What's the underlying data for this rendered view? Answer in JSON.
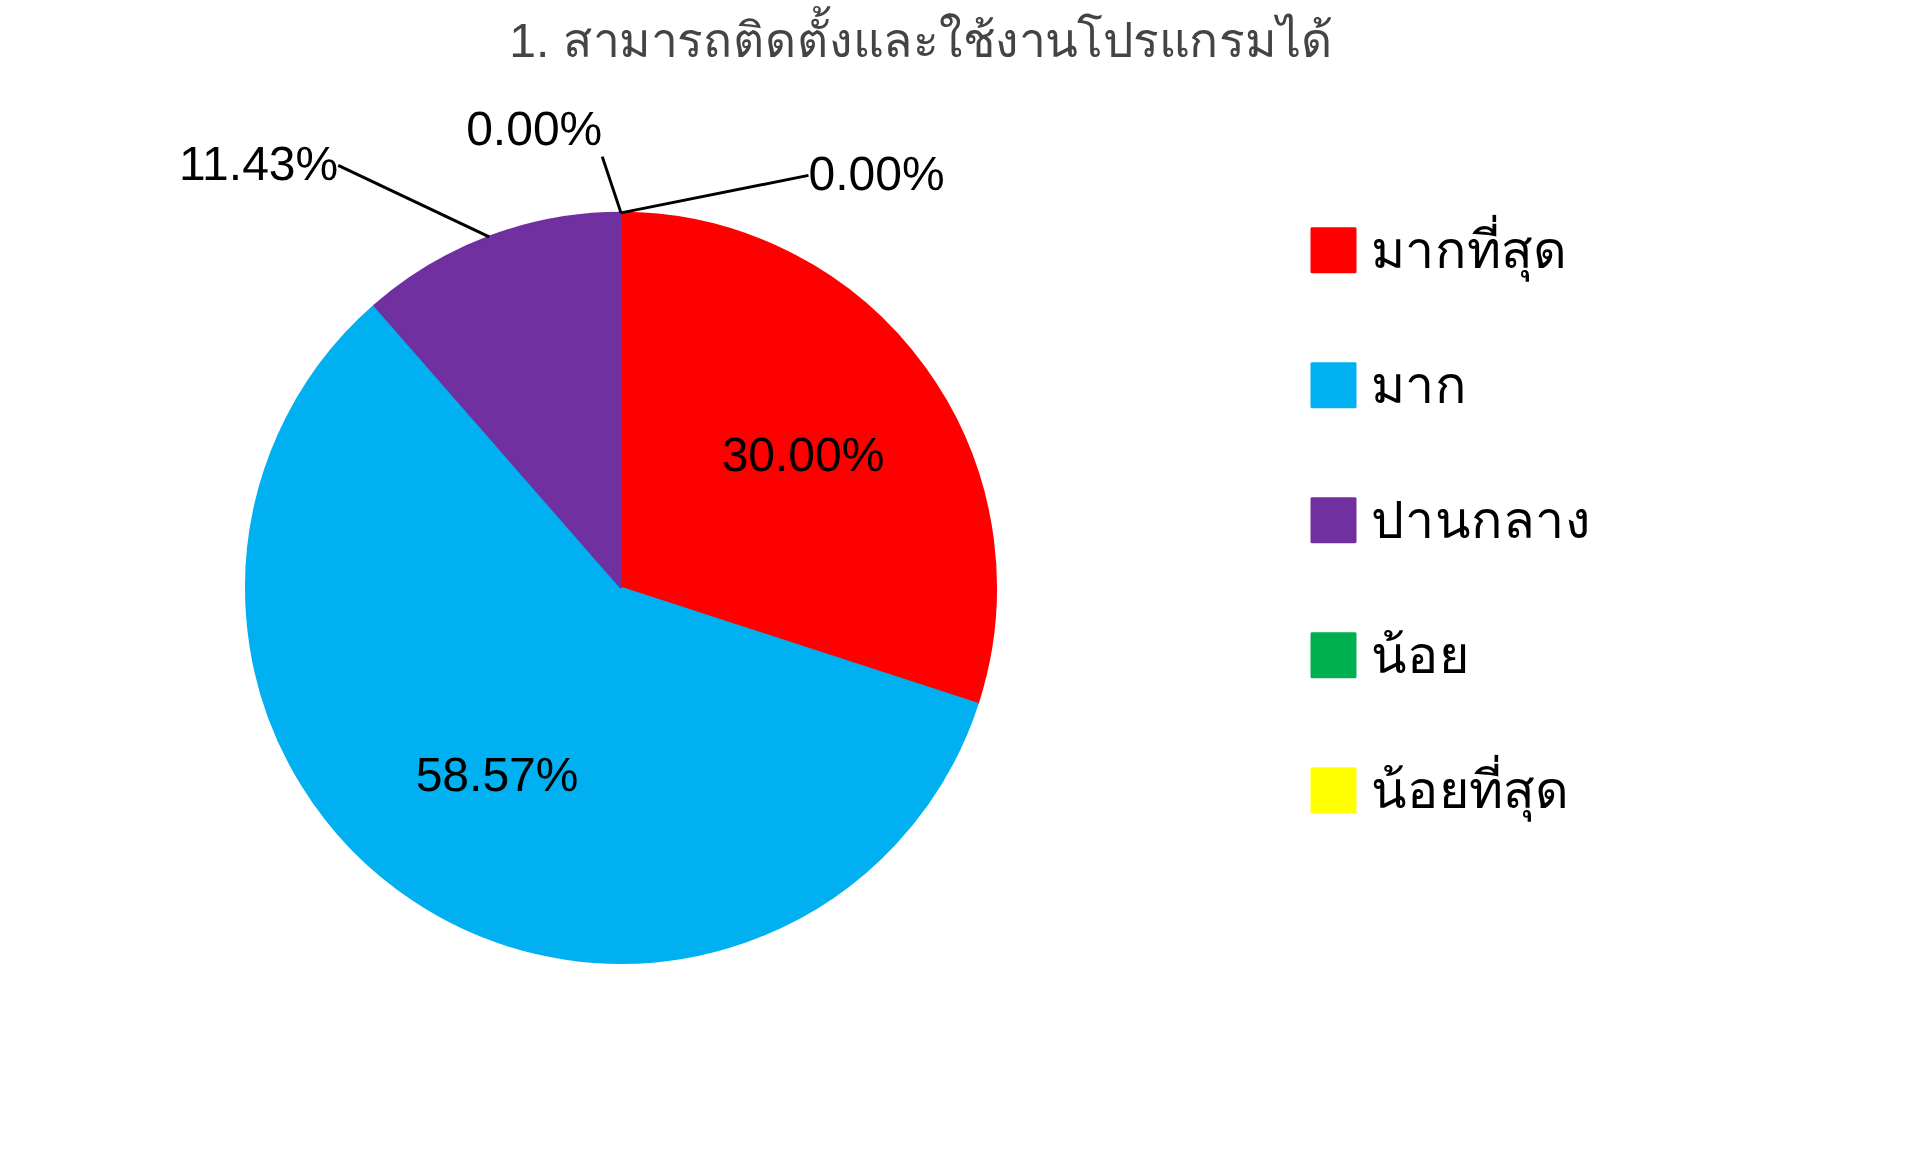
{
  "chart_data": {
    "type": "pie",
    "title": "1. สามารถติดตั้งและใช้งานโปรแกรมได้",
    "categories": [
      "มากที่สุด",
      "มาก",
      "ปานกลาง",
      "น้อย",
      "น้อยที่สุด"
    ],
    "values": [
      30.0,
      58.57,
      11.43,
      0.0,
      0.0
    ],
    "colors": [
      "#ff0000",
      "#00b0f0",
      "#7030a0",
      "#00b050",
      "#ffff00"
    ],
    "value_labels": [
      "30.00%",
      "58.57%",
      "11.43%",
      "0.00%",
      "0.00%"
    ],
    "legend": "right"
  }
}
